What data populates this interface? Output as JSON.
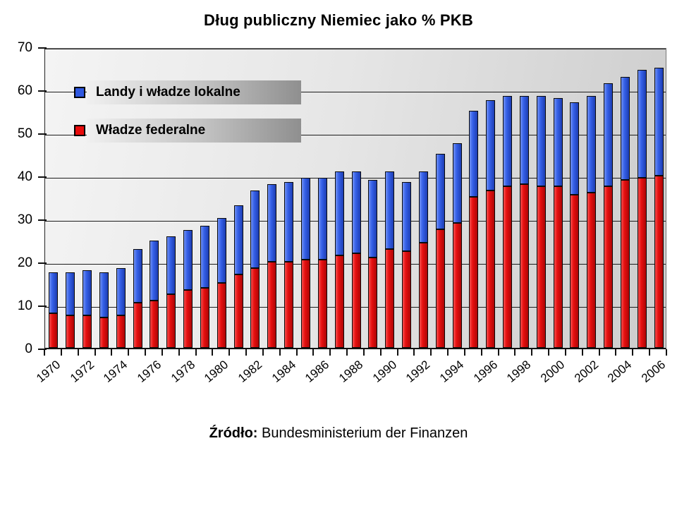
{
  "title": "Dług publiczny Niemiec jako % PKB",
  "legend": [
    {
      "label": "Landy i władze lokalne",
      "color": "#2f58e0",
      "series": "landy"
    },
    {
      "label": "Władze federalne",
      "color": "#e80c0c",
      "series": "federal"
    }
  ],
  "source": {
    "prefix": "Źródło:",
    "text": " Bundesministerium der Finanzen"
  },
  "colors": {
    "bar_blue": "#3560e8",
    "bar_red": "#e60f0f",
    "gridline": "#1c1c1c",
    "plot_bg_light": "#f4f4f4",
    "plot_bg_dark": "#cccccc"
  },
  "chart_data": {
    "type": "bar",
    "stacked": true,
    "title": "Dług publiczny Niemiec jako % PKB",
    "xlabel": "",
    "ylabel": "",
    "ylim": [
      0,
      70
    ],
    "yticks": [
      0,
      10,
      20,
      30,
      40,
      50,
      60,
      70
    ],
    "grid": "horizontal",
    "legend_position": "top-left-inside",
    "x": [
      1970,
      1971,
      1972,
      1973,
      1974,
      1975,
      1976,
      1977,
      1978,
      1979,
      1980,
      1981,
      1982,
      1983,
      1984,
      1985,
      1986,
      1987,
      1988,
      1989,
      1990,
      1991,
      1992,
      1993,
      1994,
      1995,
      1996,
      1997,
      1998,
      1999,
      2000,
      2001,
      2002,
      2003,
      2004,
      2005,
      2006
    ],
    "xtick_label_step": 2,
    "series": [
      {
        "name": "Władze federalne",
        "color": "#e60f0f",
        "values": [
          8,
          7.5,
          7.5,
          7,
          7.5,
          10.5,
          11,
          12.5,
          13.5,
          14,
          15,
          17,
          18.5,
          20,
          20,
          20.5,
          20.5,
          21.5,
          22,
          21,
          23,
          22.5,
          24.5,
          27.5,
          29,
          35,
          36.5,
          37.5,
          38,
          37.5,
          37.5,
          35.5,
          36,
          37.5,
          39,
          39.5,
          40
        ]
      },
      {
        "name": "Landy i władze lokalne",
        "color": "#3560e8",
        "values": [
          9.5,
          10,
          10.5,
          10.5,
          11,
          12.5,
          14,
          13.5,
          14,
          14.5,
          15,
          16,
          18,
          18,
          18.5,
          19,
          19,
          19.5,
          19,
          18,
          18,
          16,
          16.5,
          17.5,
          18.5,
          20,
          21,
          21,
          20.5,
          21,
          20.5,
          21.5,
          22.5,
          24,
          24,
          25,
          25
        ]
      }
    ],
    "totals": [
      17.5,
      17.5,
      18,
      17.5,
      18.5,
      23,
      25,
      26,
      27.5,
      28.5,
      30,
      33,
      36.5,
      38,
      38.5,
      39.5,
      39.5,
      41,
      41,
      39,
      41,
      38.5,
      41,
      45,
      47.5,
      55,
      57.5,
      58.5,
      58.5,
      58.5,
      58,
      57,
      58.5,
      61.5,
      63,
      64.5,
      65
    ]
  }
}
